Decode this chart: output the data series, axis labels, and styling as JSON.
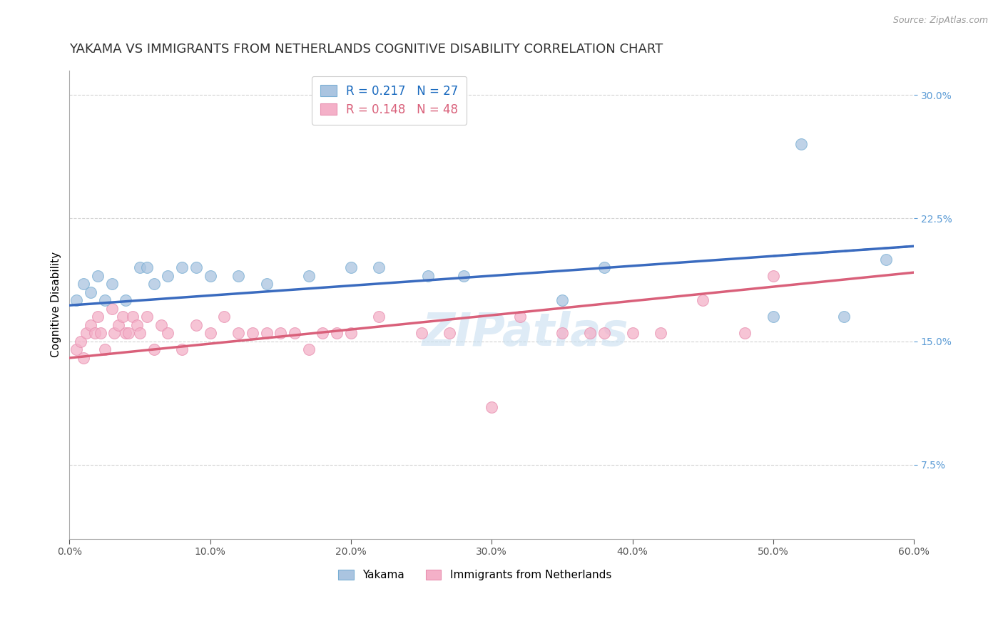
{
  "title": "YAKAMA VS IMMIGRANTS FROM NETHERLANDS COGNITIVE DISABILITY CORRELATION CHART",
  "source": "Source: ZipAtlas.com",
  "ylabel": "Cognitive Disability",
  "xlim": [
    0.0,
    0.6
  ],
  "ylim": [
    0.03,
    0.315
  ],
  "yticks": [
    0.075,
    0.15,
    0.225,
    0.3
  ],
  "ytick_labels": [
    "7.5%",
    "15.0%",
    "22.5%",
    "30.0%"
  ],
  "xticks": [
    0.0,
    0.1,
    0.2,
    0.3,
    0.4,
    0.5,
    0.6
  ],
  "xtick_labels": [
    "0.0%",
    "10.0%",
    "20.0%",
    "30.0%",
    "40.0%",
    "50.0%",
    "60.0%"
  ],
  "series1_name": "Yakama",
  "series1_color": "#aac4e0",
  "series1_edge_color": "#7aafd4",
  "series1_line_color": "#3a6bbf",
  "series1_R": 0.217,
  "series1_N": 27,
  "series1_x": [
    0.005,
    0.01,
    0.015,
    0.02,
    0.025,
    0.03,
    0.04,
    0.05,
    0.055,
    0.06,
    0.07,
    0.08,
    0.09,
    0.1,
    0.12,
    0.14,
    0.17,
    0.2,
    0.22,
    0.255,
    0.28,
    0.35,
    0.38,
    0.5,
    0.52,
    0.55,
    0.58
  ],
  "series1_y": [
    0.175,
    0.185,
    0.18,
    0.19,
    0.175,
    0.185,
    0.175,
    0.195,
    0.195,
    0.185,
    0.19,
    0.195,
    0.195,
    0.19,
    0.19,
    0.185,
    0.19,
    0.195,
    0.195,
    0.19,
    0.19,
    0.175,
    0.195,
    0.165,
    0.27,
    0.165,
    0.2
  ],
  "series2_name": "Immigrants from Netherlands",
  "series2_color": "#f4b0c8",
  "series2_edge_color": "#e890b0",
  "series2_line_color": "#d9607a",
  "series2_R": 0.148,
  "series2_N": 48,
  "series2_x": [
    0.005,
    0.008,
    0.01,
    0.012,
    0.015,
    0.018,
    0.02,
    0.022,
    0.025,
    0.03,
    0.032,
    0.035,
    0.038,
    0.04,
    0.042,
    0.045,
    0.048,
    0.05,
    0.055,
    0.06,
    0.065,
    0.07,
    0.08,
    0.09,
    0.1,
    0.11,
    0.12,
    0.13,
    0.14,
    0.15,
    0.16,
    0.17,
    0.18,
    0.19,
    0.2,
    0.22,
    0.25,
    0.27,
    0.3,
    0.32,
    0.35,
    0.37,
    0.38,
    0.4,
    0.42,
    0.45,
    0.48,
    0.5
  ],
  "series2_y": [
    0.145,
    0.15,
    0.14,
    0.155,
    0.16,
    0.155,
    0.165,
    0.155,
    0.145,
    0.17,
    0.155,
    0.16,
    0.165,
    0.155,
    0.155,
    0.165,
    0.16,
    0.155,
    0.165,
    0.145,
    0.16,
    0.155,
    0.145,
    0.16,
    0.155,
    0.165,
    0.155,
    0.155,
    0.155,
    0.155,
    0.155,
    0.145,
    0.155,
    0.155,
    0.155,
    0.165,
    0.155,
    0.155,
    0.11,
    0.165,
    0.155,
    0.155,
    0.155,
    0.155,
    0.155,
    0.175,
    0.155,
    0.19
  ],
  "series1_line_x": [
    0.0,
    0.6
  ],
  "series1_line_y": [
    0.172,
    0.208
  ],
  "series2_line_x": [
    0.0,
    0.6
  ],
  "series2_line_y": [
    0.14,
    0.192
  ],
  "watermark_text": "ZIPatlas",
  "watermark_color": "#c8dff0",
  "legend1_R_color": "#1a6abf",
  "legend2_R_color": "#d9607a",
  "legend_N_color": "#d9607a",
  "grid_color": "#c8c8c8",
  "title_color": "#333333",
  "ytick_color": "#5b9bd5",
  "title_fontsize": 13,
  "axis_label_fontsize": 11,
  "tick_fontsize": 10,
  "source_text": "Source: ZipAtlas.com"
}
